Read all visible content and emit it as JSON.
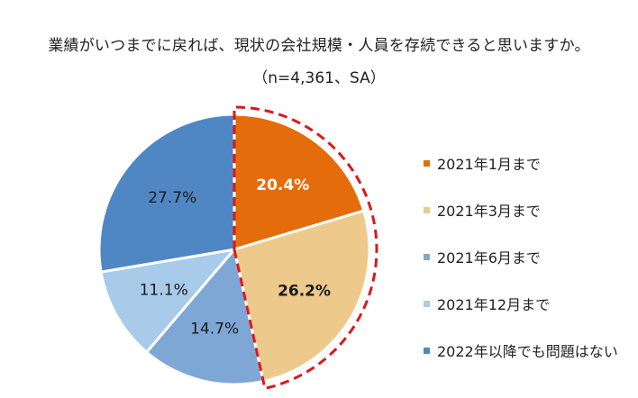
{
  "chart_data": {
    "type": "pie",
    "title": "業績がいつまでに戻れば、現状の会社規模・人員を存続できると思いますか。",
    "subtitle": "（n=4,361、SA）",
    "slices": [
      {
        "label": "2021年1月まで",
        "value": 20.4,
        "value_label": "20.4%",
        "color": "#E46C0A",
        "label_color": "#ffffff",
        "bold": true
      },
      {
        "label": "2021年3月まで",
        "value": 26.2,
        "value_label": "26.2%",
        "color": "#EDC98B",
        "label_color": "#1a1a1a",
        "bold": true
      },
      {
        "label": "2021年6月まで",
        "value": 14.7,
        "value_label": "14.7%",
        "color": "#7EA7D6",
        "label_color": "#1a1a1a",
        "bold": false
      },
      {
        "label": "2021年12月まで",
        "value": 11.1,
        "value_label": "11.1%",
        "color": "#A9CBEA",
        "label_color": "#1a1a1a",
        "bold": false
      },
      {
        "label": "2022年以降でも問題はない",
        "value": 27.7,
        "value_label": "27.7%",
        "color": "#4F87C4",
        "label_color": "#1a1a1a",
        "bold": false
      }
    ],
    "highlighted_slices": [
      "2021年1月まで",
      "2021年3月まで"
    ],
    "highlight_color": "#D9191C",
    "legend_position": "right"
  }
}
